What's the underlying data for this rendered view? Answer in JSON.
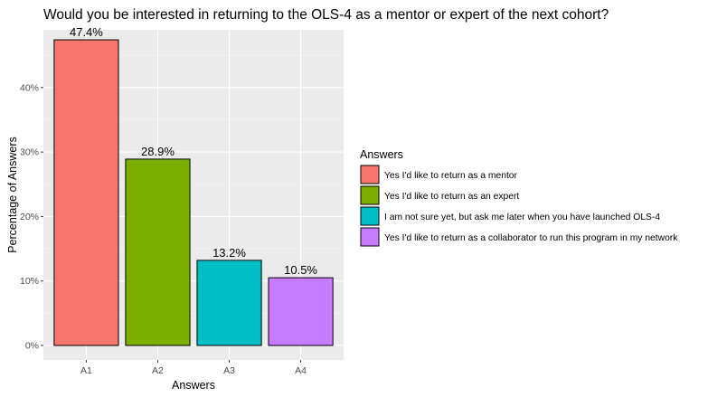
{
  "chart_data": {
    "type": "bar",
    "title": "Would you be interested in returning to the OLS-4 as a mentor or expert of the next cohort?",
    "xlabel": "Answers",
    "ylabel": "Percentage of Answers",
    "categories": [
      "A1",
      "A2",
      "A3",
      "A4"
    ],
    "values": [
      47.4,
      28.9,
      13.2,
      10.5
    ],
    "data_labels": [
      "47.4%",
      "28.9%",
      "13.2%",
      "10.5%"
    ],
    "ylim": [
      0,
      50
    ],
    "yticks": [
      0,
      10,
      20,
      30,
      40
    ],
    "ytick_labels": [
      "0%",
      "10%",
      "20%",
      "30%",
      "40%"
    ],
    "grid": true,
    "colors": [
      "#F8766D",
      "#7CAE00",
      "#00BFC4",
      "#C77CFF"
    ],
    "panel_background": "#EBEBEB",
    "legend": {
      "title": "Answers",
      "placement": "right",
      "entries": [
        "Yes I'd like to return as a mentor",
        "Yes I'd like to return as an expert",
        "I am not sure yet, but ask me later when you have launched OLS-4",
        "Yes I'd like to return as a collaborator to run this program in my network"
      ]
    }
  }
}
